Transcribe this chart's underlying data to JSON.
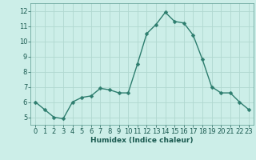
{
  "x": [
    0,
    1,
    2,
    3,
    4,
    5,
    6,
    7,
    8,
    9,
    10,
    11,
    12,
    13,
    14,
    15,
    16,
    17,
    18,
    19,
    20,
    21,
    22,
    23
  ],
  "y": [
    6.0,
    5.5,
    5.0,
    4.9,
    6.0,
    6.3,
    6.4,
    6.9,
    6.8,
    6.6,
    6.6,
    8.5,
    10.5,
    11.1,
    11.9,
    11.3,
    11.2,
    10.4,
    8.8,
    7.0,
    6.6,
    6.6,
    6.0,
    5.5
  ],
  "line_color": "#2d7d6e",
  "marker_color": "#2d7d6e",
  "bg_color": "#cceee8",
  "grid_color": "#b0d8d0",
  "xlabel": "Humidex (Indice chaleur)",
  "ylim": [
    4.5,
    12.5
  ],
  "xlim": [
    -0.5,
    23.5
  ],
  "yticks": [
    5,
    6,
    7,
    8,
    9,
    10,
    11,
    12
  ],
  "xticks": [
    0,
    1,
    2,
    3,
    4,
    5,
    6,
    7,
    8,
    9,
    10,
    11,
    12,
    13,
    14,
    15,
    16,
    17,
    18,
    19,
    20,
    21,
    22,
    23
  ],
  "xlabel_fontsize": 6.5,
  "tick_fontsize": 6.0,
  "line_width": 1.0,
  "marker_size": 2.5
}
